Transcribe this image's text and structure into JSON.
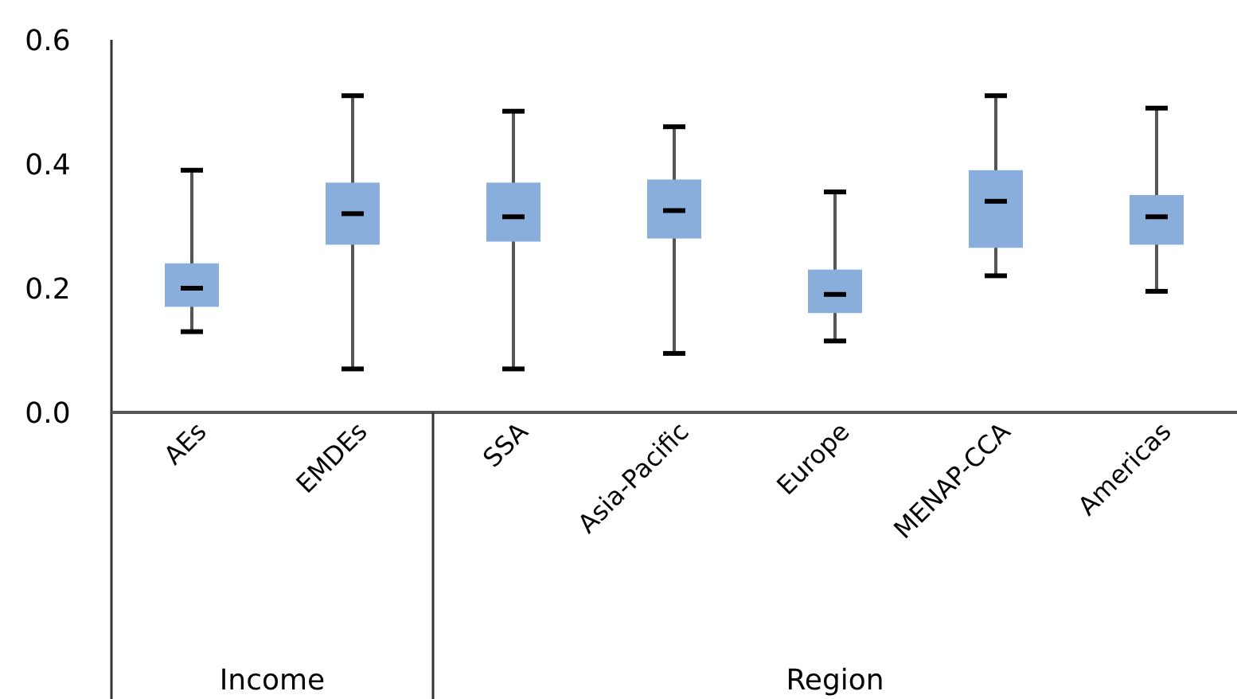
{
  "chart_data": {
    "type": "box",
    "categories": [
      "AEs",
      "EMDEs",
      "SSA",
      "Asia-Pacific",
      "Europe",
      "MENAP-CCA",
      "Americas"
    ],
    "color": "#8aaedb",
    "boxes": [
      {
        "low": 0.13,
        "q1": 0.17,
        "median": 0.2,
        "q3": 0.24,
        "high": 0.39
      },
      {
        "low": 0.07,
        "q1": 0.27,
        "median": 0.32,
        "q3": 0.37,
        "high": 0.51
      },
      {
        "low": 0.07,
        "q1": 0.275,
        "median": 0.315,
        "q3": 0.37,
        "high": 0.485
      },
      {
        "low": 0.095,
        "q1": 0.28,
        "median": 0.325,
        "q3": 0.375,
        "high": 0.46
      },
      {
        "low": 0.115,
        "q1": 0.16,
        "median": 0.19,
        "q3": 0.23,
        "high": 0.355
      },
      {
        "low": 0.22,
        "q1": 0.265,
        "median": 0.34,
        "q3": 0.39,
        "high": 0.51
      },
      {
        "low": 0.195,
        "q1": 0.27,
        "median": 0.315,
        "q3": 0.35,
        "high": 0.49
      }
    ],
    "ylim": [
      0,
      0.6
    ],
    "yticks": [
      {
        "value": 0,
        "label": "0.0"
      },
      {
        "value": 0.2,
        "label": "0.2"
      },
      {
        "value": 0.4,
        "label": "0.4"
      },
      {
        "value": 0.6,
        "label": "0.6"
      }
    ],
    "annotations": [
      "Income",
      "Region"
    ],
    "grid": false
  }
}
